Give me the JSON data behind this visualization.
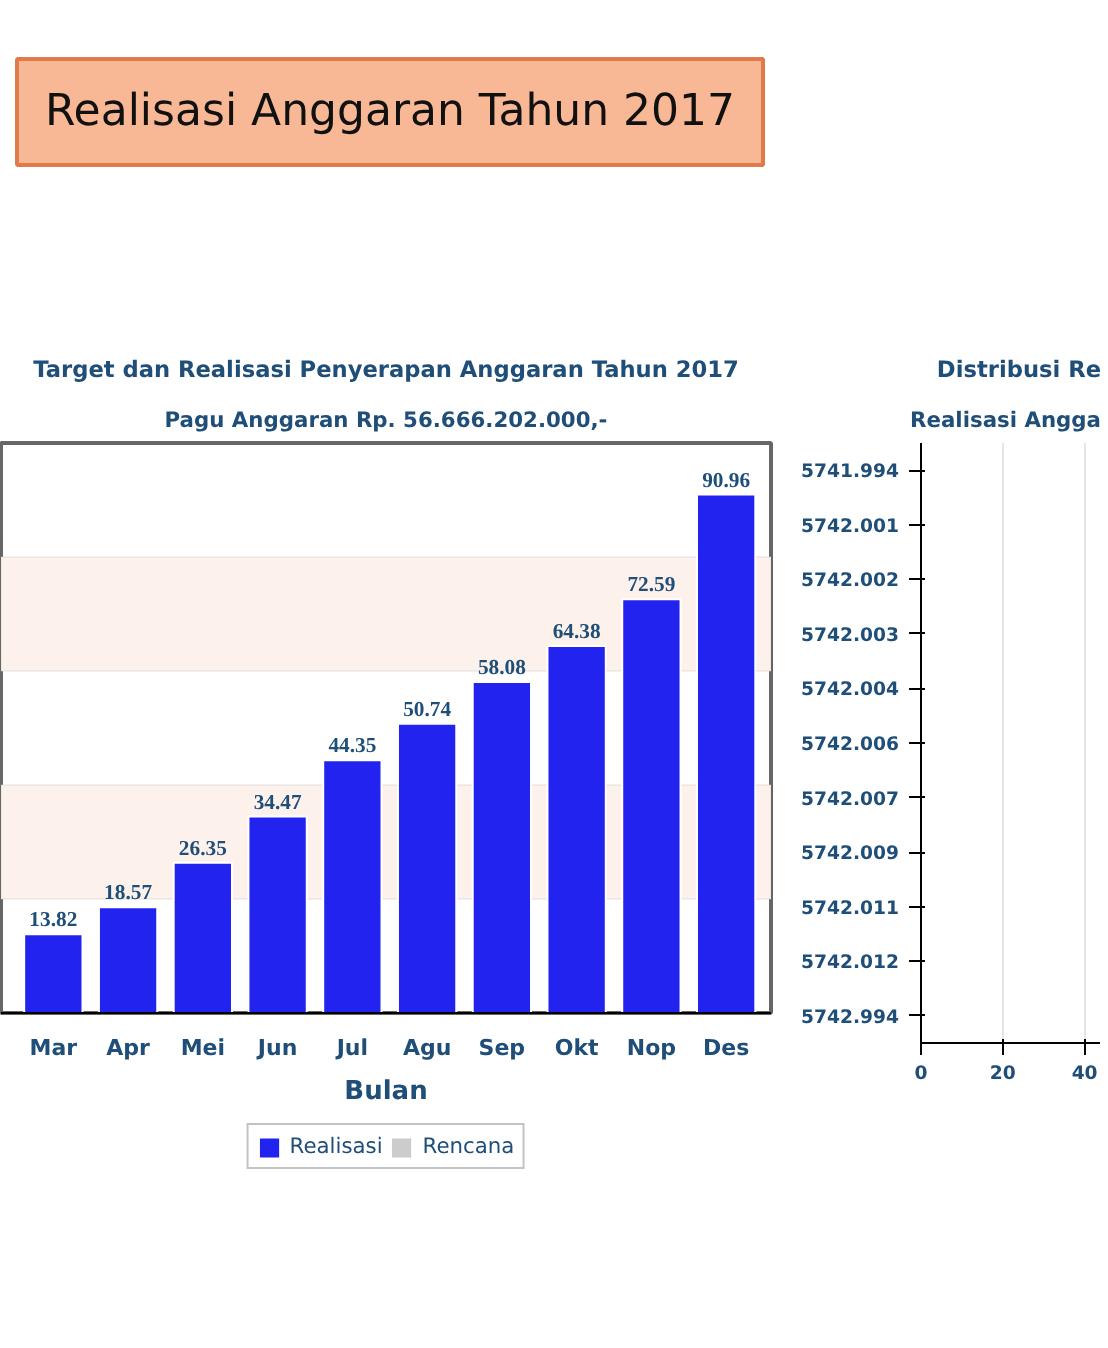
{
  "chart_data": [
    {
      "type": "bar",
      "title": "Target dan Realisasi Penyerapan Anggaran Tahun 2017",
      "subtitle": "Pagu Anggaran Rp. 56.666.202.000,-",
      "xlabel": "Bulan",
      "annotations": [
        "Realisasi Anggaran Tahun 2017"
      ],
      "categories": [
        "Mar",
        "Apr",
        "Mei",
        "Jun",
        "Jul",
        "Agu",
        "Sep",
        "Okt",
        "Nop",
        "Des"
      ],
      "series": [
        {
          "name": "Realisasi",
          "color": "#2323f0",
          "values": [
            13.82,
            18.57,
            26.35,
            34.47,
            44.35,
            50.74,
            58.08,
            64.38,
            72.59,
            90.96
          ]
        },
        {
          "name": "Rencana",
          "color": "#cccccc",
          "values": [
            null,
            null,
            null,
            null,
            null,
            null,
            null,
            null,
            null,
            null
          ]
        }
      ],
      "data_labels": true,
      "ylim": [
        0,
        100
      ],
      "tick_labels": "x",
      "bands": [
        {
          "axis": "y",
          "from": 20,
          "to": 40,
          "label": null,
          "color": "#fdf1ec"
        },
        {
          "axis": "y",
          "from": 60,
          "to": 80,
          "label": null,
          "color": "#fdf1ec"
        }
      ],
      "legend": "bottom"
    },
    {
      "type": "bar",
      "orientation": "horizontal",
      "title": "Distribusi Re",
      "subtitle": "Realisasi Angga",
      "categories": [
        "5741.994",
        "5742.001",
        "5742.002",
        "5742.003",
        "5742.004",
        "5742.006",
        "5742.007",
        "5742.009",
        "5742.011",
        "5742.012",
        "5742.994"
      ],
      "values": [
        null,
        null,
        null,
        null,
        null,
        null,
        null,
        null,
        null,
        null,
        null
      ],
      "xlim": [
        0,
        44
      ],
      "xticks": [
        0,
        20,
        40
      ],
      "grid": "x"
    }
  ]
}
